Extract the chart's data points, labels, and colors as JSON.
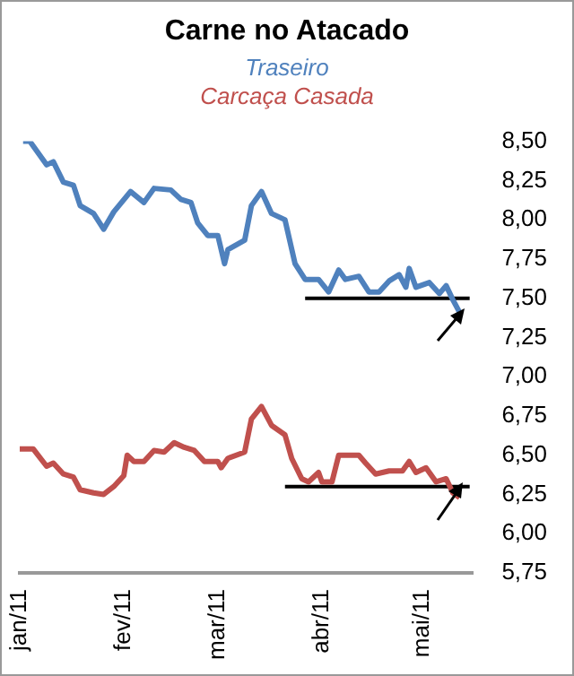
{
  "chart_data": {
    "type": "line",
    "title": "Carne no Atacado",
    "legend": "top",
    "marker": "none",
    "line_style": "solid",
    "grid": false,
    "xlim": [
      "2011-01-01",
      "2011-05-16"
    ],
    "xticks": [
      {
        "value": "2011-01-01",
        "label": "jan/11"
      },
      {
        "value": "2011-02-01",
        "label": "fev/11"
      },
      {
        "value": "2011-03-01",
        "label": "mar/11"
      },
      {
        "value": "2011-04-01",
        "label": "abr/11"
      },
      {
        "value": "2011-05-01",
        "label": "mai/11"
      }
    ],
    "ylim": [
      5.75,
      8.5
    ],
    "yticks": [
      {
        "value": 5.75,
        "label": "5,75"
      },
      {
        "value": 6,
        "label": "6,00"
      },
      {
        "value": 6.25,
        "label": "6,25"
      },
      {
        "value": 6.5,
        "label": "6,50"
      },
      {
        "value": 6.75,
        "label": "6,75"
      },
      {
        "value": 7,
        "label": "7,00"
      },
      {
        "value": 7.25,
        "label": "7,25"
      },
      {
        "value": 7.5,
        "label": "7,50"
      },
      {
        "value": 7.75,
        "label": "7,75"
      },
      {
        "value": 8,
        "label": "8,00"
      },
      {
        "value": 8.25,
        "label": "8,25"
      },
      {
        "value": 8.5,
        "label": "8,50"
      }
    ],
    "series": [
      {
        "name": "Traseiro",
        "color": "#4f81bd",
        "x": [
          "2011-01-02",
          "2011-01-04",
          "2011-01-07",
          "2011-01-09",
          "2011-01-11",
          "2011-01-14",
          "2011-01-17",
          "2011-01-19",
          "2011-01-23",
          "2011-01-26",
          "2011-01-29",
          "2011-02-03",
          "2011-02-07",
          "2011-02-10",
          "2011-02-15",
          "2011-02-18",
          "2011-02-21",
          "2011-02-23",
          "2011-02-26",
          "2011-03-01",
          "2011-03-03",
          "2011-03-04",
          "2011-03-09",
          "2011-03-11",
          "2011-03-14",
          "2011-03-17",
          "2011-03-21",
          "2011-03-24",
          "2011-03-27",
          "2011-03-31",
          "2011-04-03",
          "2011-04-06",
          "2011-04-08",
          "2011-04-12",
          "2011-04-15",
          "2011-04-18",
          "2011-04-21",
          "2011-04-24",
          "2011-04-26",
          "2011-04-27",
          "2011-04-29",
          "2011-05-03",
          "2011-05-06",
          "2011-05-08",
          "2011-05-10",
          "2011-05-12"
        ],
        "values": [
          8.5,
          8.5,
          8.41,
          8.35,
          8.37,
          8.24,
          8.22,
          8.09,
          8.04,
          7.94,
          8.05,
          8.18,
          8.11,
          8.2,
          8.19,
          8.13,
          8.11,
          7.98,
          7.9,
          7.9,
          7.72,
          7.81,
          7.87,
          8.09,
          8.18,
          8.04,
          8,
          7.72,
          7.62,
          7.62,
          7.54,
          7.68,
          7.62,
          7.64,
          7.54,
          7.54,
          7.61,
          7.65,
          7.57,
          7.69,
          7.57,
          7.6,
          7.53,
          7.58,
          7.49,
          7.41
        ]
      },
      {
        "name": "Carcaça Casada",
        "color": "#c0504d",
        "x": [
          "2011-01-01",
          "2011-01-05",
          "2011-01-09",
          "2011-01-11",
          "2011-01-14",
          "2011-01-17",
          "2011-01-19",
          "2011-01-23",
          "2011-01-26",
          "2011-01-29",
          "2011-02-01",
          "2011-02-02",
          "2011-02-04",
          "2011-02-07",
          "2011-02-10",
          "2011-02-13",
          "2011-02-16",
          "2011-02-19",
          "2011-02-22",
          "2011-02-25",
          "2011-03-01",
          "2011-03-02",
          "2011-03-04",
          "2011-03-09",
          "2011-03-11",
          "2011-03-14",
          "2011-03-17",
          "2011-03-21",
          "2011-03-23",
          "2011-03-26",
          "2011-03-28",
          "2011-03-31",
          "2011-04-01",
          "2011-04-04",
          "2011-04-06",
          "2011-04-12",
          "2011-04-14",
          "2011-04-17",
          "2011-04-21",
          "2011-04-25",
          "2011-04-27",
          "2011-04-29",
          "2011-05-02",
          "2011-05-05",
          "2011-05-08",
          "2011-05-10",
          "2011-05-12"
        ],
        "values": [
          6.54,
          6.54,
          6.43,
          6.45,
          6.38,
          6.36,
          6.28,
          6.26,
          6.25,
          6.3,
          6.37,
          6.5,
          6.46,
          6.46,
          6.53,
          6.52,
          6.58,
          6.55,
          6.53,
          6.46,
          6.46,
          6.42,
          6.48,
          6.52,
          6.73,
          6.81,
          6.69,
          6.63,
          6.48,
          6.35,
          6.33,
          6.39,
          6.33,
          6.33,
          6.5,
          6.5,
          6.45,
          6.38,
          6.4,
          6.4,
          6.46,
          6.39,
          6.42,
          6.33,
          6.35,
          6.26,
          6.23
        ]
      },
      {
        "type": "line",
        "color": "#000000",
        "x": [
          "2011-03-27",
          "2011-05-15"
        ],
        "values": [
          7.5,
          7.5
        ]
      },
      {
        "type": "line",
        "color": "#000000",
        "x": [
          "2011-03-21",
          "2011-05-15"
        ],
        "values": [
          6.3,
          6.3
        ]
      }
    ]
  }
}
